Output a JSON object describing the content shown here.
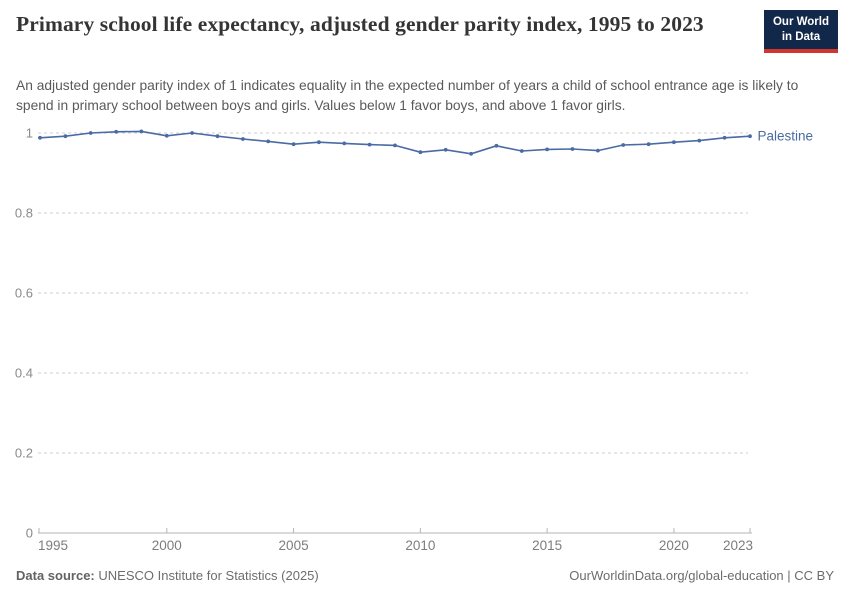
{
  "header": {
    "title": "Primary school life expectancy, adjusted gender parity index, 1995 to 2023",
    "subtitle": "An adjusted gender parity index of 1 indicates equality in the expected number of years a child of school entrance age is likely to spend in primary school between boys and girls. Values below 1 favor boys, and above 1 favor girls.",
    "logo": {
      "line1": "Our World",
      "line2": "in Data",
      "bg_color": "#12284a",
      "accent_color": "#d0362c"
    }
  },
  "chart_data": {
    "type": "line",
    "title": "Primary school life expectancy, adjusted gender parity index, 1995 to 2023",
    "xlabel": "",
    "ylabel": "",
    "x": [
      1995,
      1996,
      1997,
      1998,
      1999,
      2000,
      2001,
      2002,
      2003,
      2004,
      2005,
      2006,
      2007,
      2008,
      2009,
      2010,
      2011,
      2012,
      2013,
      2014,
      2015,
      2016,
      2017,
      2018,
      2019,
      2020,
      2021,
      2022,
      2023
    ],
    "series": [
      {
        "name": "Palestine",
        "color": "#4a6ba3",
        "values": [
          0.988,
          0.992,
          1.0,
          1.003,
          1.004,
          0.993,
          1.0,
          0.992,
          0.985,
          0.979,
          0.972,
          0.977,
          0.974,
          0.971,
          0.969,
          0.952,
          0.958,
          0.948,
          0.968,
          0.955,
          0.959,
          0.96,
          0.956,
          0.97,
          0.972,
          0.977,
          0.981,
          0.988,
          0.992
        ]
      }
    ],
    "xticks": [
      1995,
      2000,
      2005,
      2010,
      2015,
      2020,
      2023
    ],
    "yticks": [
      0,
      0.2,
      0.4,
      0.6,
      0.8,
      1
    ],
    "xlim": [
      1995,
      2023
    ],
    "ylim": [
      0,
      1.05
    ],
    "grid": "horizontal-dashed",
    "legend": "line-end-label",
    "grid_color": "#cfcfcf",
    "axis_color": "#b5b5b5",
    "tick_label_color": "#7d7d7d"
  },
  "footer": {
    "source_label": "Data source:",
    "source_text": "UNESCO Institute for Statistics (2025)",
    "attribution": "OurWorldinData.org/global-education | CC BY"
  }
}
